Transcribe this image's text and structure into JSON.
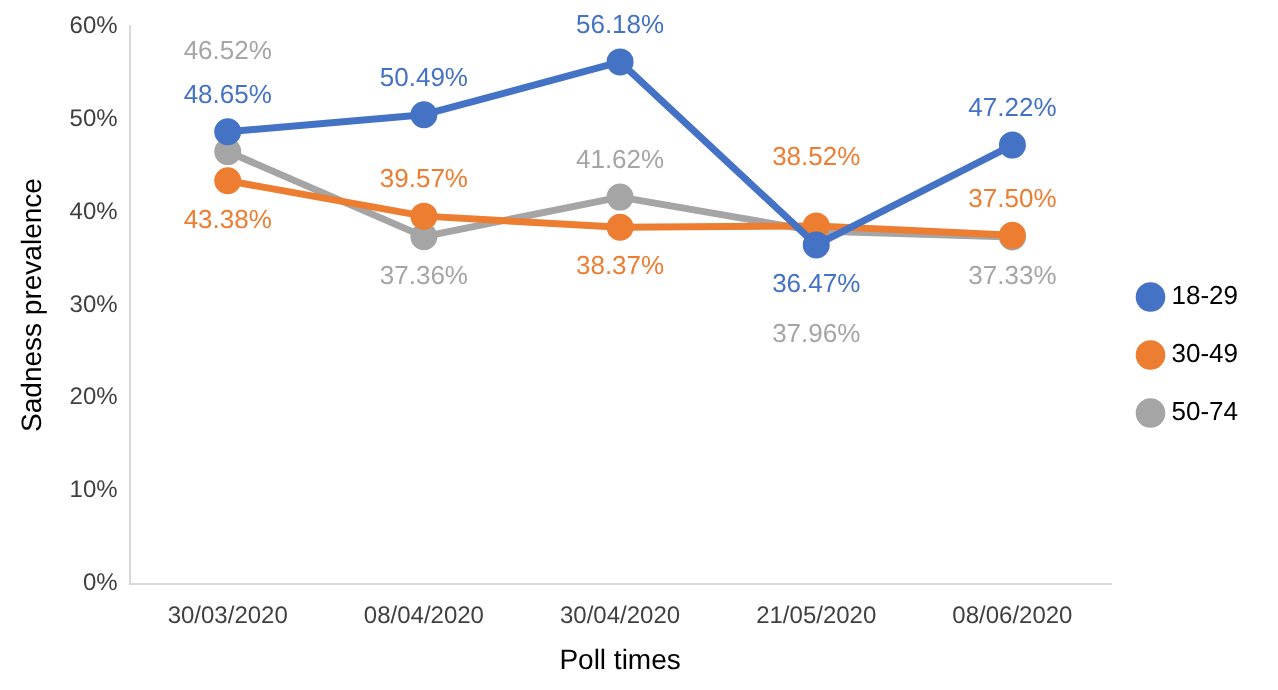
{
  "chart_data": {
    "type": "line",
    "xlabel": "Poll times",
    "ylabel": "Sadness prevalence",
    "categories": [
      "30/03/2020",
      "08/04/2020",
      "30/04/2020",
      "21/05/2020",
      "08/06/2020"
    ],
    "series": [
      {
        "name": "18-29",
        "color": "#4472c4",
        "values": [
          48.65,
          50.49,
          56.18,
          36.47,
          47.22
        ],
        "value_labels": [
          "48.65%",
          "50.49%",
          "56.18%",
          "36.47%",
          "47.22%"
        ]
      },
      {
        "name": "30-49",
        "color": "#ed7d31",
        "values": [
          43.38,
          39.57,
          38.37,
          38.52,
          37.5
        ],
        "value_labels": [
          "43.38%",
          "39.57%",
          "38.37%",
          "38.52%",
          "37.50%"
        ]
      },
      {
        "name": "50-74",
        "color": "#a5a5a5",
        "values": [
          46.52,
          37.36,
          41.62,
          37.96,
          37.33
        ],
        "value_labels": [
          "46.52%",
          "37.36%",
          "41.62%",
          "37.96%",
          "37.33%"
        ]
      }
    ],
    "ylim": [
      0,
      60
    ],
    "yticks": [
      {
        "value": 0,
        "label": "0%"
      },
      {
        "value": 10,
        "label": "10%"
      },
      {
        "value": 20,
        "label": "20%"
      },
      {
        "value": 30,
        "label": "30%"
      },
      {
        "value": 40,
        "label": "40%"
      },
      {
        "value": 50,
        "label": "50%"
      },
      {
        "value": 60,
        "label": "60%"
      }
    ],
    "grid": false,
    "legend": "right",
    "marker": "circle",
    "line_style": "solid"
  }
}
